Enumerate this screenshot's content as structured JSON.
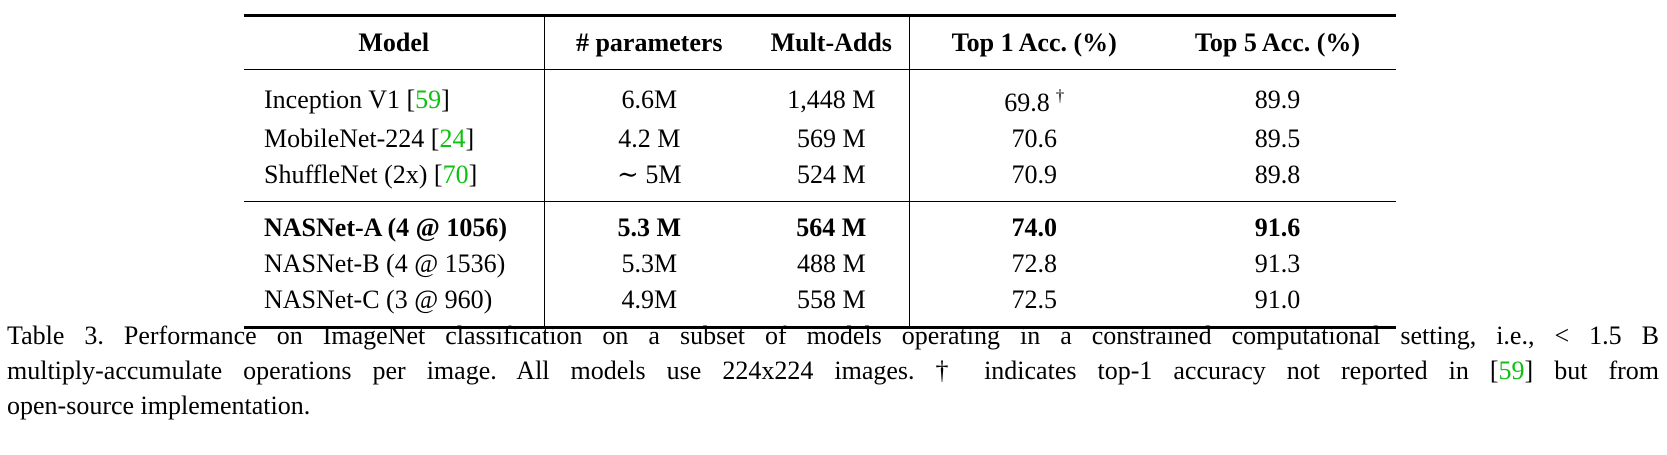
{
  "table": {
    "headers": [
      "Model",
      "# parameters",
      "Mult-Adds",
      "Top 1 Acc. (%)",
      "Top 5 Acc. (%)"
    ],
    "group1": [
      {
        "model": "Inception V1 [",
        "cite": "59",
        "model_end": "]",
        "params": "6.6M",
        "mult_adds": "1,448 M",
        "top1": "69.8",
        "top1_mark": "†",
        "top5": "89.9"
      },
      {
        "model": "MobileNet-224 [",
        "cite": "24",
        "model_end": "]",
        "params": "4.2 M",
        "mult_adds": "569 M",
        "top1": "70.6",
        "top1_mark": "",
        "top5": "89.5"
      },
      {
        "model": "ShuffleNet (2x) [",
        "cite": "70",
        "model_end": "]",
        "params": "∼ 5M",
        "mult_adds": "524 M",
        "top1": "70.9",
        "top1_mark": "",
        "top5": "89.8"
      }
    ],
    "group2": [
      {
        "model": "NASNet-A (4 @ 1056)",
        "params": "5.3 M",
        "mult_adds": "564 M",
        "top1": "74.0",
        "top5": "91.6",
        "bold": true
      },
      {
        "model": "NASNet-B (4 @ 1536)",
        "params": "5.3M",
        "mult_adds": "488 M",
        "top1": "72.8",
        "top5": "91.3",
        "bold": false
      },
      {
        "model": "NASNet-C (3 @ 960)",
        "params": "4.9M",
        "mult_adds": "558 M",
        "top1": "72.5",
        "top5": "91.0",
        "bold": false
      }
    ]
  },
  "caption": {
    "line1": "Table 3. Performance on ImageNet classification on a subset of models operating in a constrained computational setting, i.e., < 1.5 B",
    "line2_a": "multiply-accumulate operations per image.  All models use 224x224 images.  † indicates top-1 accuracy not reported in [",
    "line2_cite": "59",
    "line2_b": "] but from",
    "line3": "open-source implementation."
  }
}
